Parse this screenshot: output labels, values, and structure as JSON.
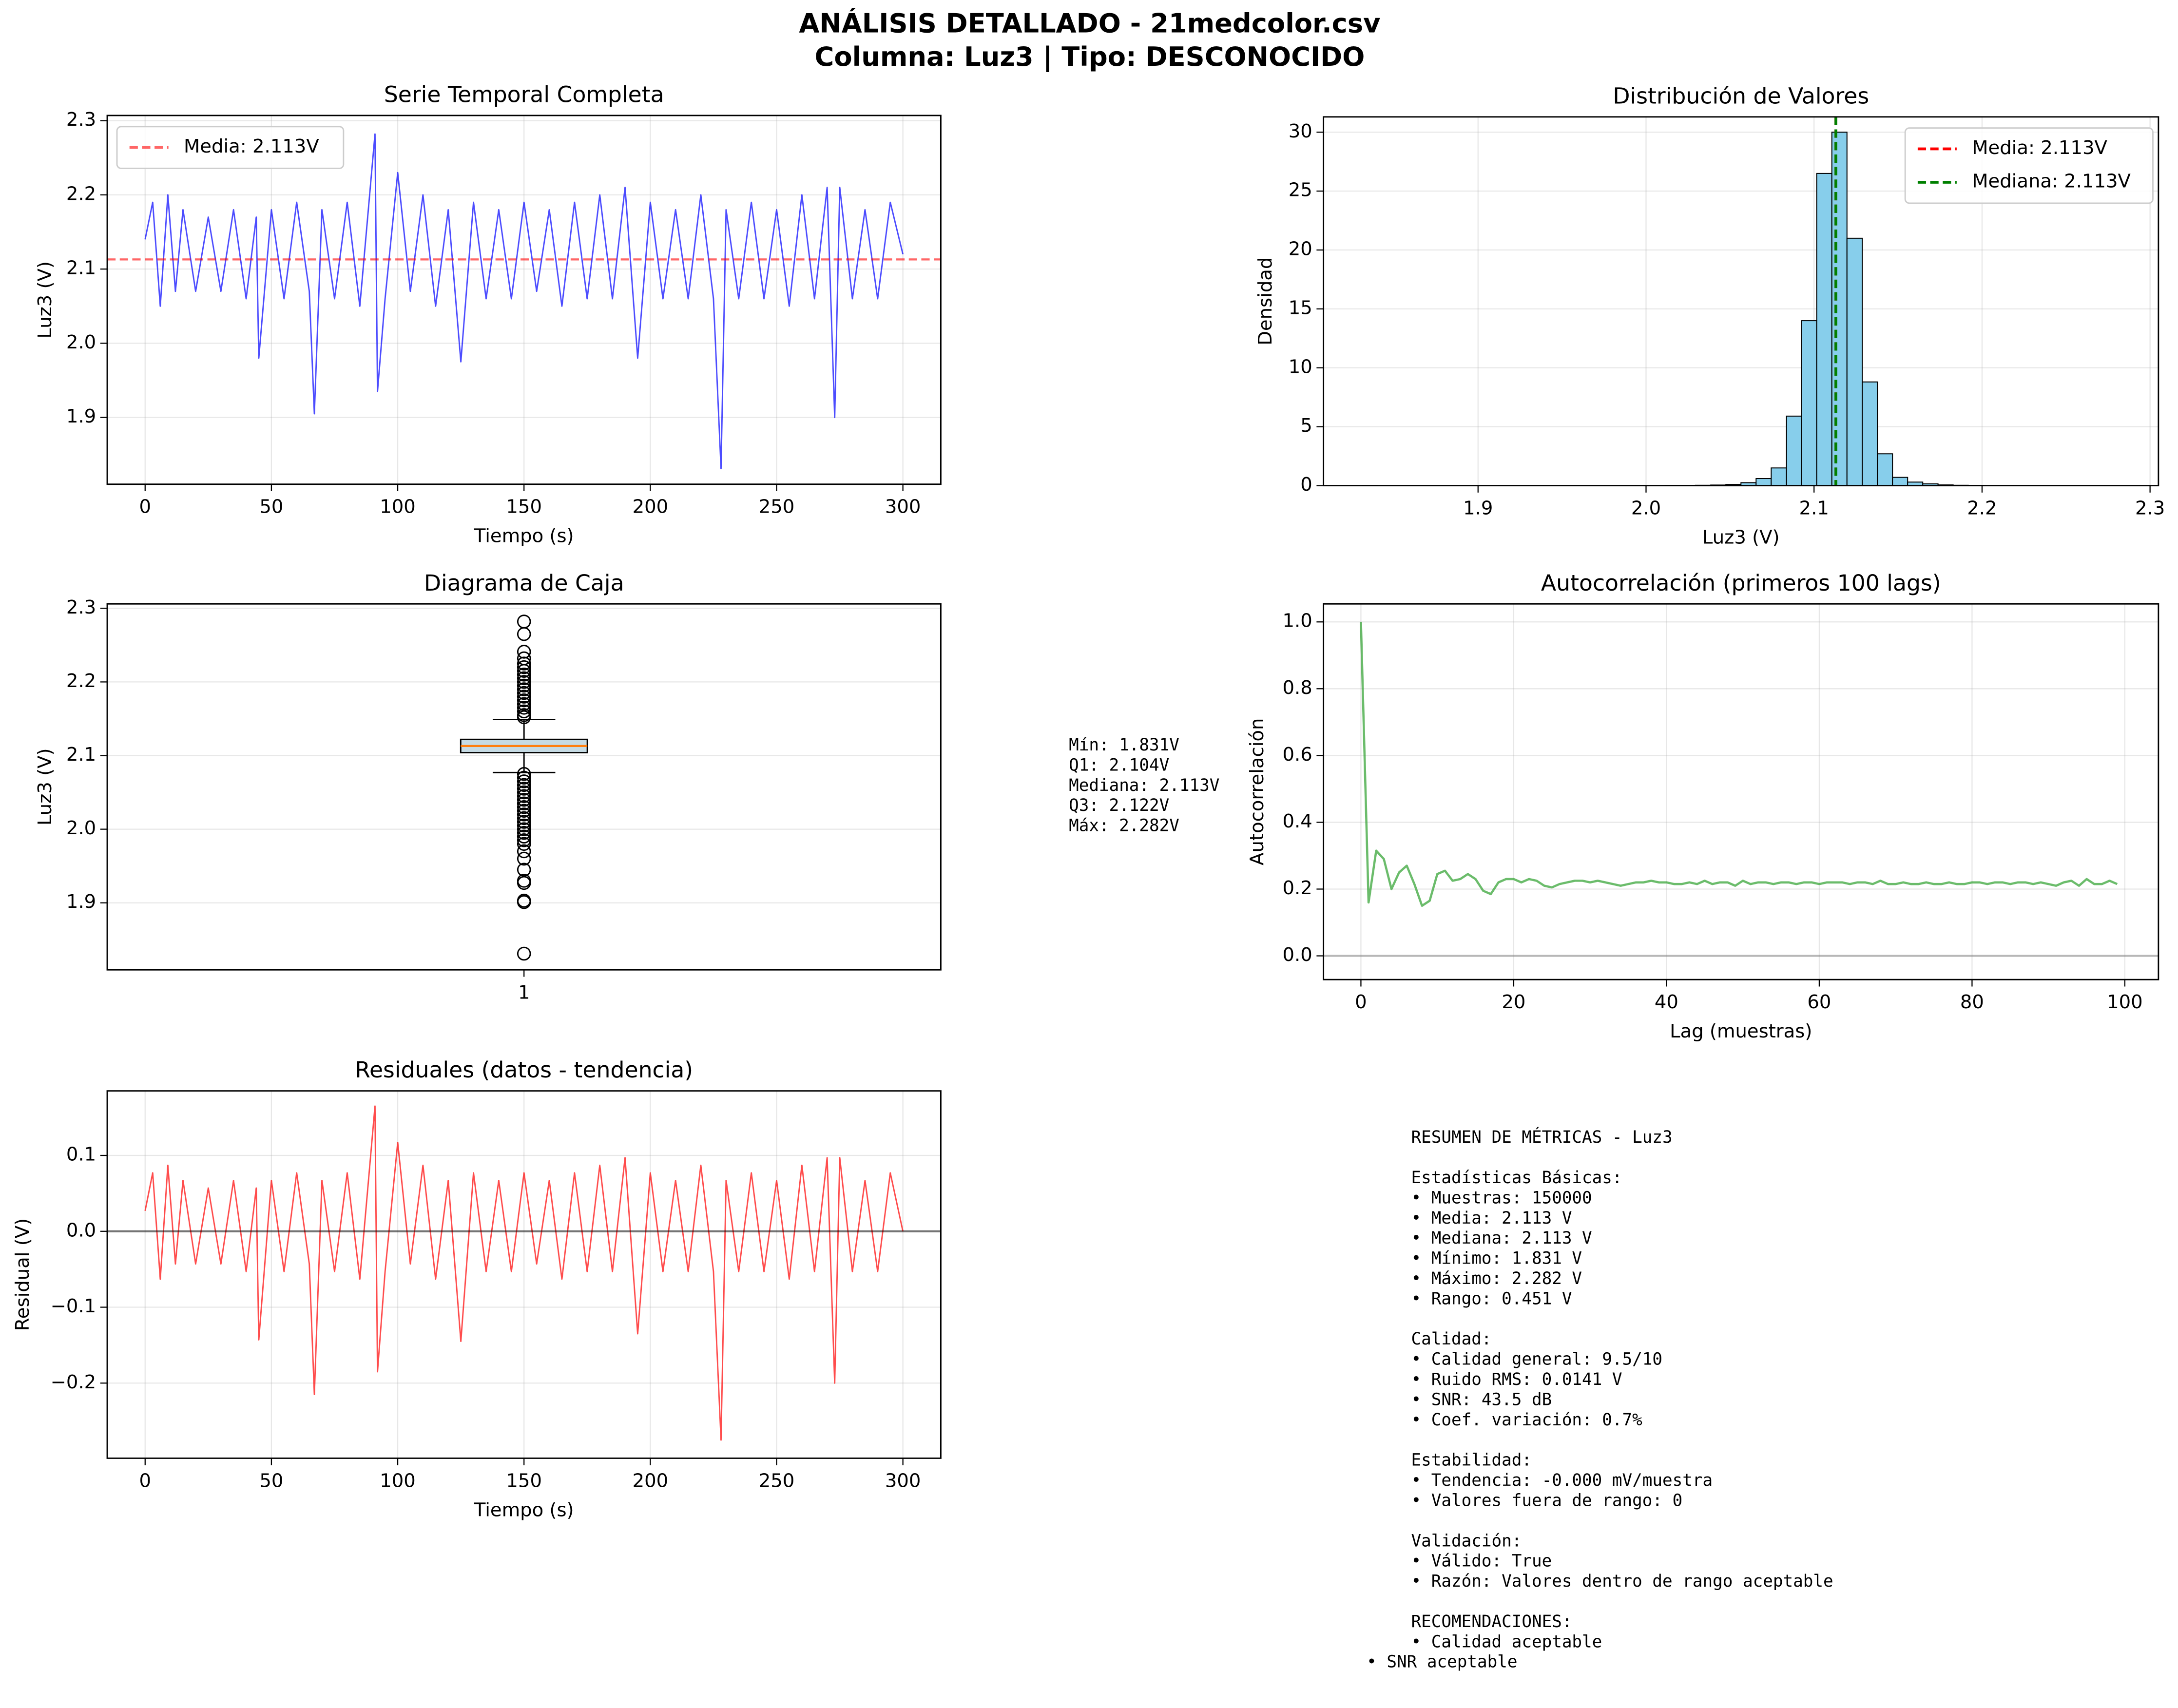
{
  "title_lines": [
    "ANÁLISIS DETALLADO - 21medcolor.csv",
    "Columna: Luz3 | Tipo: DESCONOCIDO"
  ],
  "chart_data": [
    {
      "type": "line",
      "title": "Serie Temporal Completa",
      "xlabel": "Tiempo (s)",
      "ylabel": "Luz3 (V)",
      "x": [
        0,
        3,
        6,
        9,
        12,
        15,
        20,
        25,
        30,
        35,
        40,
        44,
        45,
        50,
        55,
        60,
        65,
        67,
        70,
        75,
        80,
        85,
        91,
        92,
        95,
        100,
        105,
        110,
        115,
        120,
        125,
        130,
        135,
        140,
        145,
        150,
        155,
        160,
        165,
        170,
        175,
        180,
        185,
        190,
        195,
        200,
        205,
        210,
        215,
        220,
        225,
        228,
        230,
        235,
        240,
        245,
        250,
        255,
        260,
        265,
        270,
        273,
        275,
        280,
        285,
        290,
        295,
        300
      ],
      "series": [
        {
          "color": "#0000ff",
          "values": [
            2.14,
            2.19,
            2.05,
            2.2,
            2.07,
            2.18,
            2.07,
            2.17,
            2.07,
            2.18,
            2.06,
            2.17,
            1.98,
            2.18,
            2.06,
            2.19,
            2.07,
            1.905,
            2.18,
            2.06,
            2.19,
            2.05,
            2.282,
            1.935,
            2.06,
            2.23,
            2.07,
            2.2,
            2.05,
            2.18,
            1.975,
            2.19,
            2.06,
            2.18,
            2.06,
            2.19,
            2.07,
            2.18,
            2.05,
            2.19,
            2.06,
            2.2,
            2.06,
            2.21,
            1.98,
            2.19,
            2.06,
            2.18,
            2.06,
            2.2,
            2.06,
            1.831,
            2.18,
            2.06,
            2.19,
            2.06,
            2.18,
            2.05,
            2.2,
            2.06,
            2.21,
            1.9,
            2.21,
            2.06,
            2.18,
            2.06,
            2.19,
            2.12
          ]
        }
      ],
      "hlines": [
        {
          "name": "Media: 2.113V",
          "value": 2.113,
          "color": "#ff0000",
          "dashed": true
        }
      ],
      "legend": "upper left",
      "grid": true,
      "xlim": [
        -15,
        315
      ],
      "xticks": [
        0,
        50,
        100,
        150,
        200,
        250,
        300
      ],
      "ylim": [
        1.81,
        2.307
      ],
      "yticks": [
        1.9,
        {
          "value": 2,
          "label": "2.0"
        },
        2.1,
        2.2,
        2.3
      ]
    },
    {
      "type": "histogram",
      "title": "Distribución de Valores",
      "xlabel": "Luz3 (V)",
      "ylabel": "Densidad",
      "bins": [
        1.831,
        1.84,
        1.849,
        1.8581,
        1.8671,
        1.8761,
        1.8851,
        1.8941,
        1.9032,
        1.9122,
        1.9212,
        1.9302,
        1.9392,
        1.9483,
        1.9573,
        1.9663,
        1.9753,
        1.9843,
        1.9934,
        2.0024,
        2.0114,
        2.0204,
        2.0294,
        2.0385,
        2.0475,
        2.0565,
        2.0655,
        2.0745,
        2.0836,
        2.0926,
        2.1016,
        2.1106,
        2.1196,
        2.1287,
        2.1377,
        2.1467,
        2.1557,
        2.1647,
        2.1738,
        2.1828,
        2.1918,
        2.2008,
        2.2098,
        2.2189,
        2.2279,
        2.2369,
        2.2459,
        2.2549,
        2.264,
        2.273,
        2.282
      ],
      "values": [
        0.01,
        0,
        0,
        0,
        0,
        0,
        0,
        0,
        0,
        0.01,
        0.01,
        0.01,
        0.01,
        0.01,
        0.01,
        0.01,
        0.01,
        0.01,
        0.01,
        0.01,
        0.02,
        0.02,
        0.03,
        0.05,
        0.1,
        0.25,
        0.6,
        1.5,
        5.9,
        14,
        26.5,
        30,
        21,
        8.8,
        2.7,
        0.7,
        0.3,
        0.15,
        0.06,
        0.03,
        0.02,
        0.01,
        0.01,
        0.01,
        0.01,
        0.01,
        0.01,
        0.01,
        0.01,
        0.01
      ],
      "color": "#87ceeb",
      "vlines": [
        {
          "name": "Media: 2.113V",
          "value": 2.113,
          "color": "#ff0000",
          "dashed": true
        },
        {
          "name": "Mediana: 2.113V",
          "value": 2.113,
          "color": "#008000",
          "dashed": true
        }
      ],
      "legend": "upper right",
      "grid": true,
      "xlim": [
        1.808,
        2.305
      ],
      "xticks": [
        1.9,
        {
          "value": 2,
          "label": "2.0"
        },
        2.1,
        2.2,
        2.3
      ],
      "ylim": [
        0,
        31.3
      ],
      "yticks": [
        0,
        5,
        10,
        15,
        20,
        25,
        30
      ]
    },
    {
      "type": "box",
      "title": "Diagrama de Caja",
      "ylabel": "Luz3 (V)",
      "categories": [
        "1"
      ],
      "box": {
        "whisker_low": 2.077,
        "q1": 2.104,
        "median": 2.113,
        "q3": 2.122,
        "whisker_high": 2.149,
        "outliers": [
          2.282,
          2.265,
          2.241,
          2.232,
          2.225,
          2.22,
          2.215,
          2.21,
          2.205,
          2.2,
          2.195,
          2.19,
          2.185,
          2.18,
          2.175,
          2.17,
          2.165,
          2.16,
          2.155,
          2.152,
          2.075,
          2.07,
          2.065,
          2.06,
          2.055,
          2.05,
          2.045,
          2.04,
          2.035,
          2.03,
          2.025,
          2.02,
          2.015,
          2.01,
          2.005,
          2,
          1.995,
          1.99,
          1.985,
          1.98,
          1.97,
          1.96,
          1.945,
          1.93,
          1.927,
          1.903,
          1.901,
          1.831
        ]
      },
      "box_color": "#c6dbe4",
      "median_color": "#ff7f0e",
      "grid": true,
      "ylim": [
        1.809,
        2.306
      ],
      "yticks": [
        1.9,
        {
          "value": 2,
          "label": "2.0"
        },
        2.1,
        2.2,
        2.3
      ],
      "annotation_lines": [
        "Mín: 1.831V",
        "Q1: 2.104V",
        "Mediana: 2.113V",
        "Q3: 2.122V",
        "Máx: 2.282V"
      ]
    },
    {
      "type": "line",
      "title": "Autocorrelación (primeros 100 lags)",
      "xlabel": "Lag (muestras)",
      "ylabel": "Autocorrelación",
      "x": [
        0,
        1,
        2,
        3,
        4,
        5,
        6,
        7,
        8,
        9,
        10,
        11,
        12,
        13,
        14,
        15,
        16,
        17,
        18,
        19,
        20,
        21,
        22,
        23,
        24,
        25,
        26,
        27,
        28,
        29,
        30,
        31,
        32,
        33,
        34,
        35,
        36,
        37,
        38,
        39,
        40,
        41,
        42,
        43,
        44,
        45,
        46,
        47,
        48,
        49,
        50,
        51,
        52,
        53,
        54,
        55,
        56,
        57,
        58,
        59,
        60,
        61,
        62,
        63,
        64,
        65,
        66,
        67,
        68,
        69,
        70,
        71,
        72,
        73,
        74,
        75,
        76,
        77,
        78,
        79,
        80,
        81,
        82,
        83,
        84,
        85,
        86,
        87,
        88,
        89,
        90,
        91,
        92,
        93,
        94,
        95,
        96,
        97,
        98,
        99
      ],
      "series": [
        {
          "color": "#2ca02c",
          "values": [
            1.0,
            0.16,
            0.315,
            0.29,
            0.2,
            0.25,
            0.27,
            0.215,
            0.15,
            0.165,
            0.245,
            0.255,
            0.225,
            0.23,
            0.245,
            0.23,
            0.195,
            0.185,
            0.22,
            0.23,
            0.23,
            0.22,
            0.23,
            0.225,
            0.21,
            0.205,
            0.215,
            0.22,
            0.225,
            0.225,
            0.22,
            0.225,
            0.22,
            0.215,
            0.21,
            0.215,
            0.22,
            0.22,
            0.225,
            0.22,
            0.22,
            0.215,
            0.215,
            0.22,
            0.215,
            0.225,
            0.215,
            0.22,
            0.22,
            0.21,
            0.225,
            0.215,
            0.22,
            0.22,
            0.215,
            0.22,
            0.22,
            0.215,
            0.22,
            0.22,
            0.215,
            0.22,
            0.22,
            0.22,
            0.215,
            0.22,
            0.22,
            0.215,
            0.225,
            0.215,
            0.215,
            0.22,
            0.215,
            0.215,
            0.22,
            0.215,
            0.215,
            0.22,
            0.215,
            0.215,
            0.22,
            0.22,
            0.215,
            0.22,
            0.22,
            0.215,
            0.22,
            0.22,
            0.215,
            0.22,
            0.215,
            0.21,
            0.22,
            0.225,
            0.21,
            0.23,
            0.215,
            0.215,
            0.225,
            0.215
          ]
        }
      ],
      "hlines": [
        {
          "value": 0,
          "color": "#808080",
          "dashed": false
        }
      ],
      "grid": true,
      "xlim": [
        -4.9,
        104.4
      ],
      "xticks": [
        0,
        20,
        40,
        60,
        80,
        100
      ],
      "ylim": [
        -0.071,
        1.054
      ],
      "yticks": [
        {
          "value": 0,
          "label": "0.0"
        },
        0.2,
        0.4,
        0.6,
        0.8,
        {
          "value": 1,
          "label": "1.0"
        }
      ]
    },
    {
      "type": "line",
      "title": "Residuales (datos - tendencia)",
      "xlabel": "Tiempo (s)",
      "ylabel": "Residual (V)",
      "x": [
        0,
        3,
        6,
        9,
        12,
        15,
        20,
        25,
        30,
        35,
        40,
        44,
        45,
        50,
        55,
        60,
        65,
        67,
        70,
        75,
        80,
        85,
        91,
        92,
        95,
        100,
        105,
        110,
        115,
        120,
        125,
        130,
        135,
        140,
        145,
        150,
        155,
        160,
        165,
        170,
        175,
        180,
        185,
        190,
        195,
        200,
        205,
        210,
        215,
        220,
        225,
        228,
        230,
        235,
        240,
        245,
        250,
        255,
        260,
        265,
        270,
        273,
        275,
        280,
        285,
        290,
        295,
        300
      ],
      "series": [
        {
          "color": "#ff0000",
          "values": [
            0.027,
            0.077,
            -0.063,
            0.087,
            -0.043,
            0.067,
            -0.043,
            0.057,
            -0.043,
            0.067,
            -0.053,
            0.057,
            -0.143,
            0.067,
            -0.053,
            0.077,
            -0.043,
            -0.215,
            0.067,
            -0.053,
            0.077,
            -0.063,
            0.165,
            -0.185,
            -0.053,
            0.117,
            -0.043,
            0.087,
            -0.063,
            0.067,
            -0.145,
            0.077,
            -0.053,
            0.067,
            -0.053,
            0.077,
            -0.043,
            0.067,
            -0.063,
            0.077,
            -0.053,
            0.087,
            -0.053,
            0.097,
            -0.135,
            0.077,
            -0.053,
            0.067,
            -0.053,
            0.087,
            -0.053,
            -0.275,
            0.067,
            -0.053,
            0.077,
            -0.053,
            0.067,
            -0.063,
            0.087,
            -0.053,
            0.097,
            -0.2,
            0.097,
            -0.053,
            0.067,
            -0.053,
            0.077,
            0.0
          ]
        }
      ],
      "hlines": [
        {
          "value": 0,
          "color": "#000000",
          "dashed": false
        }
      ],
      "grid": true,
      "xlim": [
        -15,
        315
      ],
      "xticks": [
        0,
        50,
        100,
        150,
        200,
        250,
        300
      ],
      "ylim": [
        -0.299,
        0.185
      ],
      "yticks": [
        {
          "value": -0.2,
          "label": "−0.2"
        },
        {
          "value": -0.1,
          "label": "−0.1"
        },
        {
          "value": 0,
          "label": "0.0"
        },
        0.1
      ]
    }
  ],
  "summary": {
    "heading": "RESUMEN DE MÉTRICAS - Luz3",
    "sections": [
      {
        "title": "Estadísticas Básicas:",
        "items": [
          "• Muestras: 150000",
          "• Media: 2.113 V",
          "• Mediana: 2.113 V",
          "• Mínimo: 1.831 V",
          "• Máximo: 2.282 V",
          "• Rango: 0.451 V"
        ]
      },
      {
        "title": "Calidad:",
        "items": [
          "• Calidad general: 9.5/10",
          "• Ruido RMS: 0.0141 V",
          "• SNR: 43.5 dB",
          "• Coef. variación: 0.7%"
        ]
      },
      {
        "title": "Estabilidad:",
        "items": [
          "• Tendencia: -0.000 mV/muestra",
          "• Valores fuera de rango: 0"
        ]
      },
      {
        "title": "Validación:",
        "items": [
          "• Válido: True",
          "• Razón: Valores dentro de rango aceptable"
        ]
      },
      {
        "title": "RECOMENDACIONES:",
        "items": [
          "• Calidad aceptable",
          "• SNR aceptable"
        ]
      }
    ]
  }
}
